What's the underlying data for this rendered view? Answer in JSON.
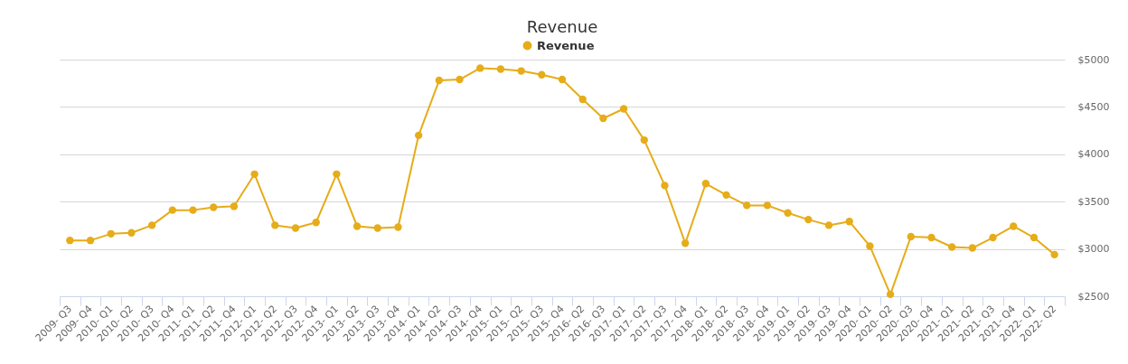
{
  "chart_data": {
    "type": "line",
    "title": "Revenue",
    "categories": [
      "2009- Q3",
      "2009- Q4",
      "2010- Q1",
      "2010- Q2",
      "2010- Q3",
      "2010- Q4",
      "2011- Q1",
      "2011- Q2",
      "2011- Q4",
      "2012- Q1",
      "2012- Q2",
      "2012- Q3",
      "2012- Q4",
      "2013- Q1",
      "2013- Q2",
      "2013- Q3",
      "2013- Q4",
      "2014- Q1",
      "2014- Q2",
      "2014- Q3",
      "2014- Q4",
      "2015- Q1",
      "2015- Q2",
      "2015- Q3",
      "2015- Q4",
      "2016- Q2",
      "2016- Q3",
      "2017- Q1",
      "2017- Q2",
      "2017- Q3",
      "2017- Q4",
      "2018- Q1",
      "2018- Q2",
      "2018- Q3",
      "2018- Q4",
      "2019- Q1",
      "2019- Q2",
      "2019- Q3",
      "2019- Q4",
      "2020- Q1",
      "2020- Q2",
      "2020- Q3",
      "2020- Q4",
      "2021- Q1",
      "2021- Q2",
      "2021- Q3",
      "2021- Q4",
      "2022- Q1",
      "2022- Q2"
    ],
    "series": [
      {
        "name": "Revenue",
        "color": "#e6ac19",
        "values": [
          3090,
          3090,
          3160,
          3170,
          3250,
          3410,
          3410,
          3440,
          3450,
          3790,
          3250,
          3220,
          3280,
          3790,
          3240,
          3220,
          3230,
          4200,
          4780,
          4790,
          4910,
          4900,
          4880,
          4840,
          4790,
          4580,
          4380,
          4480,
          4150,
          3670,
          3060,
          3690,
          3570,
          3460,
          3460,
          3380,
          3310,
          3250,
          3290,
          3030,
          2520,
          3130,
          3120,
          3020,
          3010,
          3120,
          3240,
          3120,
          2940
        ]
      }
    ],
    "ylim": [
      2500,
      5000
    ],
    "yticks": [
      {
        "value": 2500,
        "label": "$2500"
      },
      {
        "value": 3000,
        "label": "$3000"
      },
      {
        "value": 3500,
        "label": "$3500"
      },
      {
        "value": 4000,
        "label": "$4000"
      },
      {
        "value": 4500,
        "label": "$4500"
      },
      {
        "value": 5000,
        "label": "$5000"
      }
    ],
    "grid": "y",
    "legend": "top",
    "marker": "circle"
  }
}
